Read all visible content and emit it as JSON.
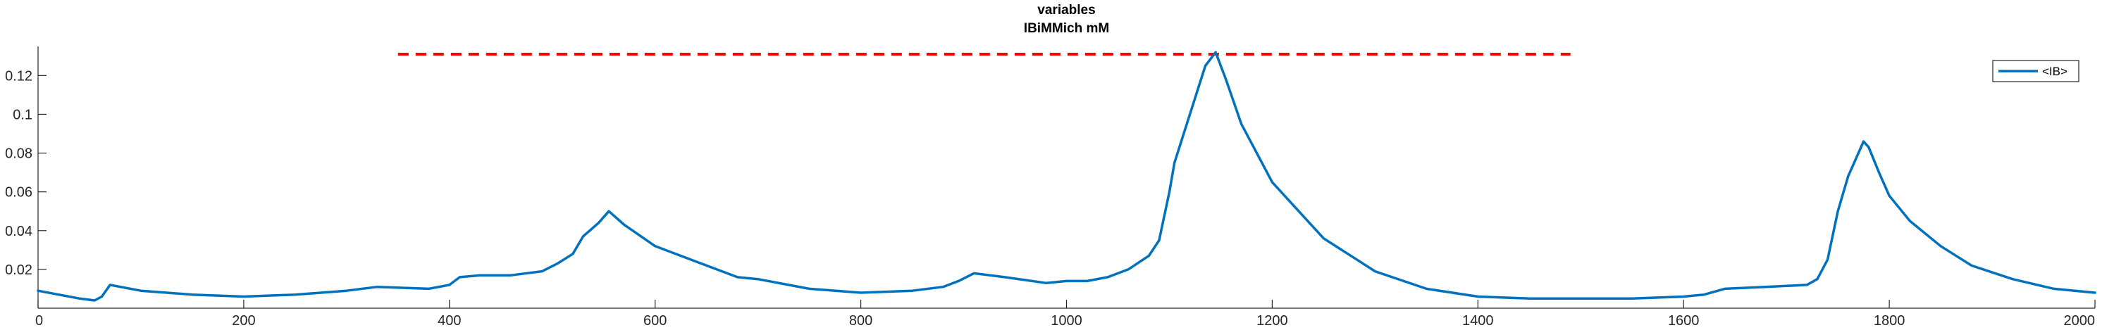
{
  "chart_data": {
    "type": "line",
    "title": "variables",
    "subtitle": "IBiMMich mM",
    "xlabel": "",
    "ylabel": "",
    "xlim": [
      0,
      2000
    ],
    "ylim": [
      0,
      0.135
    ],
    "xticks": [
      0,
      200,
      400,
      600,
      800,
      1000,
      1200,
      1400,
      1600,
      1800,
      2000
    ],
    "yticks": [
      0.02,
      0.04,
      0.06,
      0.08,
      0.1,
      0.12
    ],
    "ytick_labels": [
      "0.02",
      "0.04",
      "0.06",
      "0.08",
      "0.1",
      "0.12"
    ],
    "legend": {
      "position": "top-right",
      "entries": [
        "<IB>"
      ]
    },
    "threshold_line": {
      "y": 0.131,
      "x_start": 350,
      "x_end": 1490,
      "color": "#ff0000",
      "style": "dashed"
    },
    "series": [
      {
        "name": "<IB>",
        "color": "#0072bd",
        "x": [
          0,
          20,
          40,
          55,
          62,
          70,
          80,
          100,
          150,
          200,
          250,
          300,
          330,
          380,
          400,
          410,
          430,
          460,
          490,
          505,
          520,
          530,
          545,
          555,
          570,
          600,
          640,
          680,
          700,
          750,
          800,
          850,
          880,
          895,
          910,
          940,
          980,
          1000,
          1020,
          1040,
          1060,
          1080,
          1090,
          1100,
          1105,
          1120,
          1135,
          1145,
          1155,
          1170,
          1200,
          1250,
          1300,
          1350,
          1400,
          1450,
          1500,
          1550,
          1600,
          1620,
          1640,
          1680,
          1720,
          1730,
          1740,
          1750,
          1760,
          1770,
          1775,
          1780,
          1790,
          1800,
          1820,
          1850,
          1880,
          1920,
          1960,
          2000
        ],
        "y": [
          0.009,
          0.007,
          0.005,
          0.004,
          0.006,
          0.012,
          0.011,
          0.009,
          0.007,
          0.006,
          0.007,
          0.009,
          0.011,
          0.01,
          0.012,
          0.016,
          0.017,
          0.017,
          0.019,
          0.023,
          0.028,
          0.037,
          0.044,
          0.05,
          0.043,
          0.032,
          0.024,
          0.016,
          0.015,
          0.01,
          0.008,
          0.009,
          0.011,
          0.014,
          0.018,
          0.016,
          0.013,
          0.014,
          0.014,
          0.016,
          0.02,
          0.027,
          0.035,
          0.06,
          0.075,
          0.1,
          0.125,
          0.132,
          0.118,
          0.095,
          0.065,
          0.036,
          0.019,
          0.01,
          0.006,
          0.005,
          0.005,
          0.005,
          0.006,
          0.007,
          0.01,
          0.011,
          0.012,
          0.015,
          0.025,
          0.05,
          0.068,
          0.08,
          0.086,
          0.083,
          0.07,
          0.058,
          0.045,
          0.032,
          0.022,
          0.015,
          0.01,
          0.008
        ]
      }
    ]
  }
}
